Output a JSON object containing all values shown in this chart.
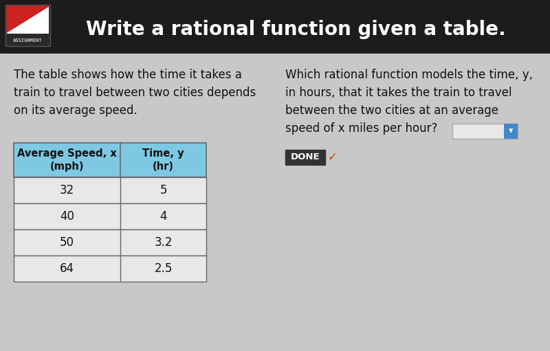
{
  "title": "Write a rational function given a table.",
  "header_bg": "#1c1c1c",
  "header_text_color": "#ffffff",
  "body_bg": "#c8c8c8",
  "left_text_line1": "The table shows how the time it takes a",
  "left_text_line2": "train to travel between two cities depends",
  "left_text_line3": "on its average speed.",
  "right_text_line1": "Which rational function models the time, y,",
  "right_text_line2": "in hours, that it takes the train to travel",
  "right_text_line3": "between the two cities at an average",
  "right_text_line4": "speed of x miles per hour?",
  "done_label": "DONE",
  "table_header_col1": "Average Speed, x\n(mph)",
  "table_header_col2": "Time, y\n(hr)",
  "table_header_bg": "#7ec8e3",
  "table_header_text": "#111111",
  "table_row_bg": "#e8e8e8",
  "table_border": "#666666",
  "speeds": [
    "32",
    "40",
    "50",
    "64"
  ],
  "times": [
    "5",
    "4",
    "3.2",
    "2.5"
  ],
  "logo_red": "#cc2222",
  "logo_white": "#ffffff",
  "logo_dark": "#1c1c1c",
  "assignment_label": "ASSIGNMENT",
  "done_bg": "#333333",
  "done_text": "#ffffff",
  "check_color": "#cc4400",
  "input_box_bg": "#e8e8e8",
  "input_box_border": "#aaaaaa",
  "dropdown_bg": "#4488cc",
  "fig_width": 8.0,
  "fig_height": 5.11,
  "dpi": 100
}
